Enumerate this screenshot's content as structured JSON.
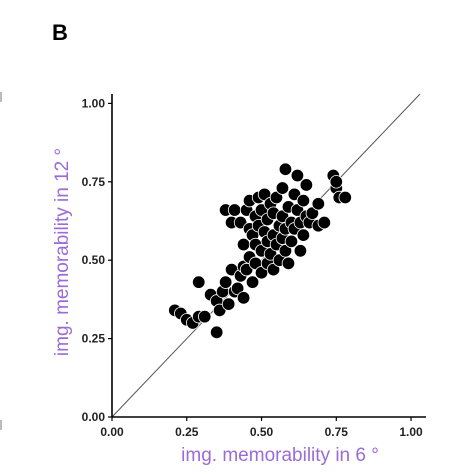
{
  "panel_label": "B",
  "chart_data": {
    "type": "scatter",
    "xlabel": "img. memorability in 6 °",
    "ylabel": "img. memorability in 12 °",
    "xlim": [
      0,
      1.05
    ],
    "ylim": [
      0,
      1.03
    ],
    "xticks": [
      "0.00",
      "0.25",
      "0.50",
      "0.75",
      "1.00"
    ],
    "yticks": [
      "0.00",
      "0.25",
      "0.50",
      "0.75",
      "1.00"
    ],
    "reference_line": "y = x",
    "grid": false,
    "marker_color": "#000000",
    "marker_edge": "#ffffff",
    "label_color": "#9b6bd6",
    "points": [
      [
        0.21,
        0.34
      ],
      [
        0.23,
        0.33
      ],
      [
        0.25,
        0.31
      ],
      [
        0.27,
        0.3
      ],
      [
        0.29,
        0.32
      ],
      [
        0.29,
        0.43
      ],
      [
        0.31,
        0.32
      ],
      [
        0.33,
        0.39
      ],
      [
        0.35,
        0.27
      ],
      [
        0.35,
        0.37
      ],
      [
        0.36,
        0.34
      ],
      [
        0.37,
        0.4
      ],
      [
        0.38,
        0.43
      ],
      [
        0.38,
        0.66
      ],
      [
        0.39,
        0.36
      ],
      [
        0.4,
        0.62
      ],
      [
        0.4,
        0.47
      ],
      [
        0.41,
        0.4
      ],
      [
        0.41,
        0.66
      ],
      [
        0.42,
        0.41
      ],
      [
        0.43,
        0.45
      ],
      [
        0.43,
        0.62
      ],
      [
        0.44,
        0.38
      ],
      [
        0.44,
        0.48
      ],
      [
        0.44,
        0.55
      ],
      [
        0.45,
        0.66
      ],
      [
        0.45,
        0.47
      ],
      [
        0.46,
        0.6
      ],
      [
        0.46,
        0.51
      ],
      [
        0.46,
        0.69
      ],
      [
        0.47,
        0.43
      ],
      [
        0.47,
        0.58
      ],
      [
        0.48,
        0.64
      ],
      [
        0.48,
        0.55
      ],
      [
        0.48,
        0.49
      ],
      [
        0.49,
        0.7
      ],
      [
        0.49,
        0.61
      ],
      [
        0.5,
        0.53
      ],
      [
        0.5,
        0.46
      ],
      [
        0.5,
        0.66
      ],
      [
        0.51,
        0.59
      ],
      [
        0.51,
        0.71
      ],
      [
        0.52,
        0.49
      ],
      [
        0.52,
        0.56
      ],
      [
        0.52,
        0.63
      ],
      [
        0.53,
        0.68
      ],
      [
        0.53,
        0.52
      ],
      [
        0.54,
        0.58
      ],
      [
        0.54,
        0.47
      ],
      [
        0.54,
        0.65
      ],
      [
        0.55,
        0.55
      ],
      [
        0.55,
        0.7
      ],
      [
        0.56,
        0.61
      ],
      [
        0.56,
        0.5
      ],
      [
        0.57,
        0.57
      ],
      [
        0.57,
        0.73
      ],
      [
        0.57,
        0.64
      ],
      [
        0.58,
        0.79
      ],
      [
        0.58,
        0.53
      ],
      [
        0.58,
        0.6
      ],
      [
        0.59,
        0.67
      ],
      [
        0.59,
        0.49
      ],
      [
        0.6,
        0.62
      ],
      [
        0.6,
        0.56
      ],
      [
        0.61,
        0.71
      ],
      [
        0.61,
        0.6
      ],
      [
        0.62,
        0.66
      ],
      [
        0.62,
        0.77
      ],
      [
        0.63,
        0.62
      ],
      [
        0.63,
        0.53
      ],
      [
        0.64,
        0.69
      ],
      [
        0.64,
        0.58
      ],
      [
        0.65,
        0.74
      ],
      [
        0.65,
        0.64
      ],
      [
        0.66,
        0.62
      ],
      [
        0.67,
        0.65
      ],
      [
        0.69,
        0.61
      ],
      [
        0.69,
        0.68
      ],
      [
        0.71,
        0.62
      ],
      [
        0.74,
        0.77
      ],
      [
        0.75,
        0.73
      ],
      [
        0.75,
        0.75
      ],
      [
        0.76,
        0.7
      ],
      [
        0.78,
        0.7
      ]
    ]
  }
}
